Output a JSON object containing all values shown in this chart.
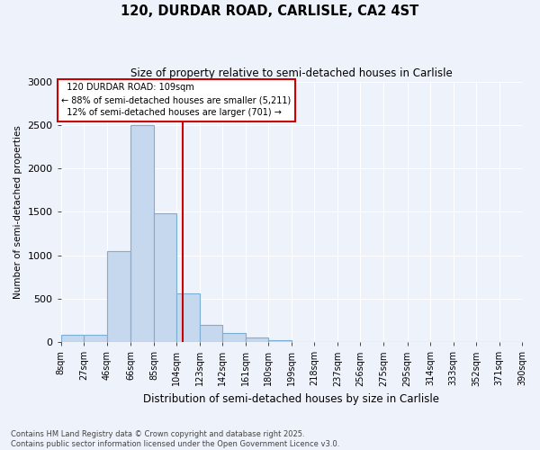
{
  "title1": "120, DURDAR ROAD, CARLISLE, CA2 4ST",
  "title2": "Size of property relative to semi-detached houses in Carlisle",
  "xlabel": "Distribution of semi-detached houses by size in Carlisle",
  "ylabel": "Number of semi-detached properties",
  "property_size": 109,
  "property_label": "120 DURDAR ROAD: 109sqm",
  "pct_smaller": 88,
  "count_smaller": 5211,
  "pct_larger": 12,
  "count_larger": 701,
  "bar_color": "#c5d8ee",
  "bar_edge_color": "#7bafd4",
  "vline_color": "#cc0000",
  "annotation_box_color": "#cc0000",
  "background_color": "#eef2fb",
  "grid_color": "#ffffff",
  "footer1": "Contains HM Land Registry data © Crown copyright and database right 2025.",
  "footer2": "Contains public sector information licensed under the Open Government Licence v3.0.",
  "bin_edges": [
    8,
    27,
    46,
    66,
    85,
    104,
    123,
    142,
    161,
    180,
    199,
    218,
    237,
    256,
    275,
    295,
    314,
    333,
    352,
    371,
    390
  ],
  "bin_labels": [
    "8sqm",
    "27sqm",
    "46sqm",
    "66sqm",
    "85sqm",
    "104sqm",
    "123sqm",
    "142sqm",
    "161sqm",
    "180sqm",
    "199sqm",
    "218sqm",
    "237sqm",
    "256sqm",
    "275sqm",
    "295sqm",
    "314sqm",
    "333sqm",
    "352sqm",
    "371sqm",
    "390sqm"
  ],
  "counts": [
    80,
    80,
    1050,
    2500,
    1480,
    560,
    200,
    100,
    50,
    20,
    5,
    0,
    0,
    0,
    0,
    0,
    0,
    0,
    0,
    0
  ],
  "ylim": [
    0,
    3000
  ],
  "yticks": [
    0,
    500,
    1000,
    1500,
    2000,
    2500,
    3000
  ]
}
